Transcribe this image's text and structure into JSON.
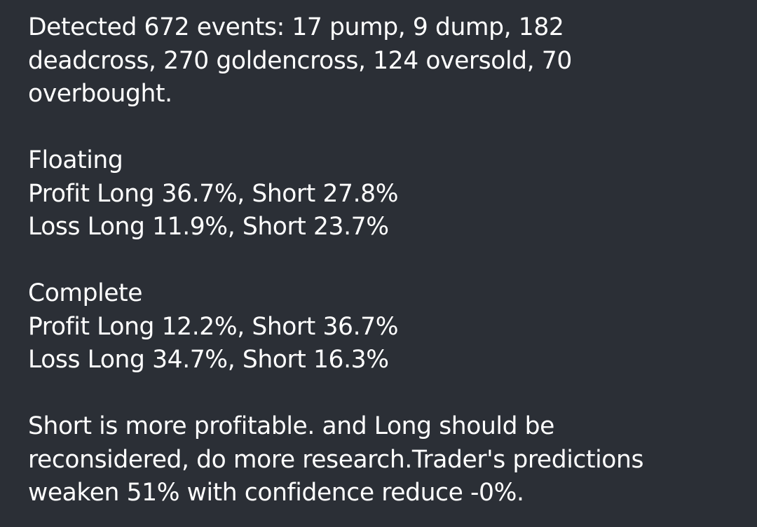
{
  "message": {
    "summary": [
      "Detected 672 events:  17 pump, 9 dump, 182",
      "deadcross, 270 goldencross, 124 oversold, 70",
      "overbought."
    ],
    "floating": {
      "heading": "Floating",
      "profit": "Profit Long 36.7%, Short 27.8%",
      "loss": "Loss Long 11.9%, Short 23.7%"
    },
    "complete": {
      "heading": "Complete",
      "profit": "Profit Long 12.2%, Short 36.7%",
      "loss": "Loss Long 34.7%, Short 16.3%"
    },
    "conclusion": [
      "Short is more profitable. and Long should be",
      "reconsidered, do more research.Trader's predictions",
      "weaken 51% with confidence reduce -0%."
    ]
  },
  "colors": {
    "background": "#2b2f36",
    "text": "#ffffff"
  }
}
